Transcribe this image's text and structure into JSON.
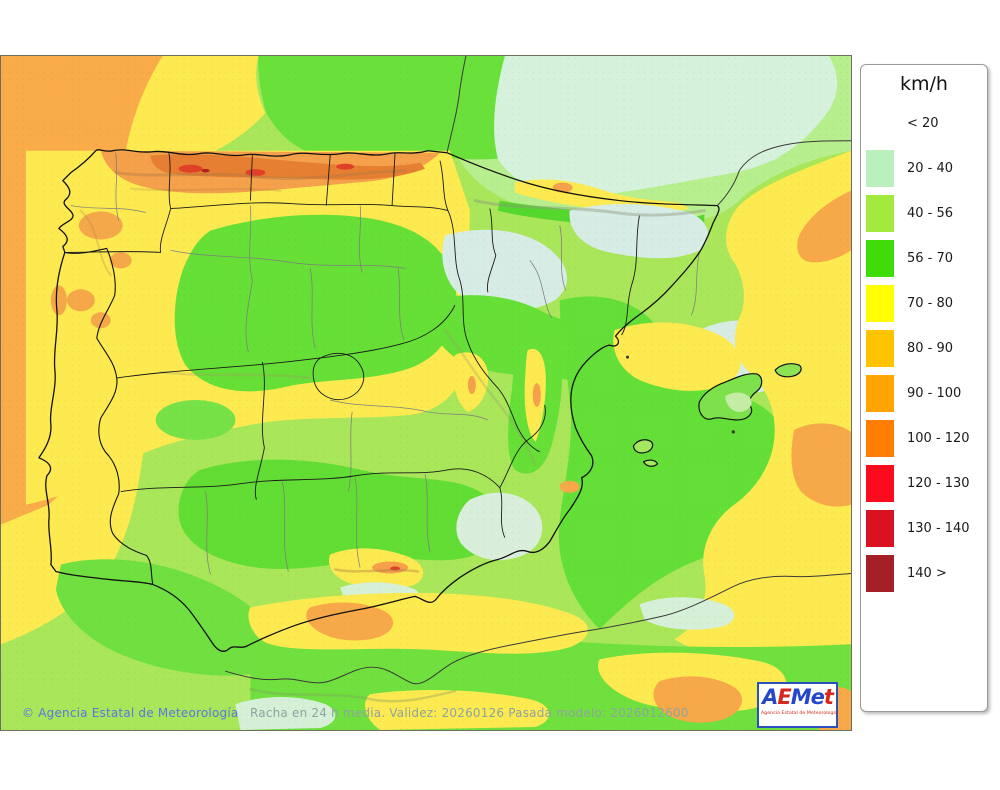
{
  "legend": {
    "title": "km/h",
    "entries": [
      {
        "label": "< 20",
        "color": ""
      },
      {
        "label": "20 - 40",
        "color": "#b9f0bb"
      },
      {
        "label": "40 - 56",
        "color": "#a2ea3e"
      },
      {
        "label": "56 - 70",
        "color": "#3fdc0a"
      },
      {
        "label": "70 - 80",
        "color": "#ffff00"
      },
      {
        "label": "80 - 90",
        "color": "#ffc300"
      },
      {
        "label": "90 - 100",
        "color": "#ffa300"
      },
      {
        "label": "100 - 120",
        "color": "#ff7d00"
      },
      {
        "label": "120 - 130",
        "color": "#fb0b1c"
      },
      {
        "label": "130 - 140",
        "color": "#d81220"
      },
      {
        "label": "140 >",
        "color": "#a42026"
      }
    ]
  },
  "map": {
    "copyright": "© Agencia Estatal de Meteorología",
    "caption": "Racha en 24 h media. Validez: 20260126 Pasada modelo: 2026012600",
    "copyright_color": "#5b76e0",
    "caption_color": "#8fa39e"
  },
  "logo": {
    "letters": [
      {
        "char": "A",
        "color": "#2547c8"
      },
      {
        "char": "E",
        "color": "#d6281e"
      },
      {
        "char": "M",
        "color": "#2547c8"
      },
      {
        "char": "e",
        "color": "#2547c8"
      },
      {
        "char": "t",
        "color": "#d6281e"
      }
    ],
    "subtitle": "Agencia Estatal de Meteorología",
    "subtitle_color": "#d6281e"
  }
}
